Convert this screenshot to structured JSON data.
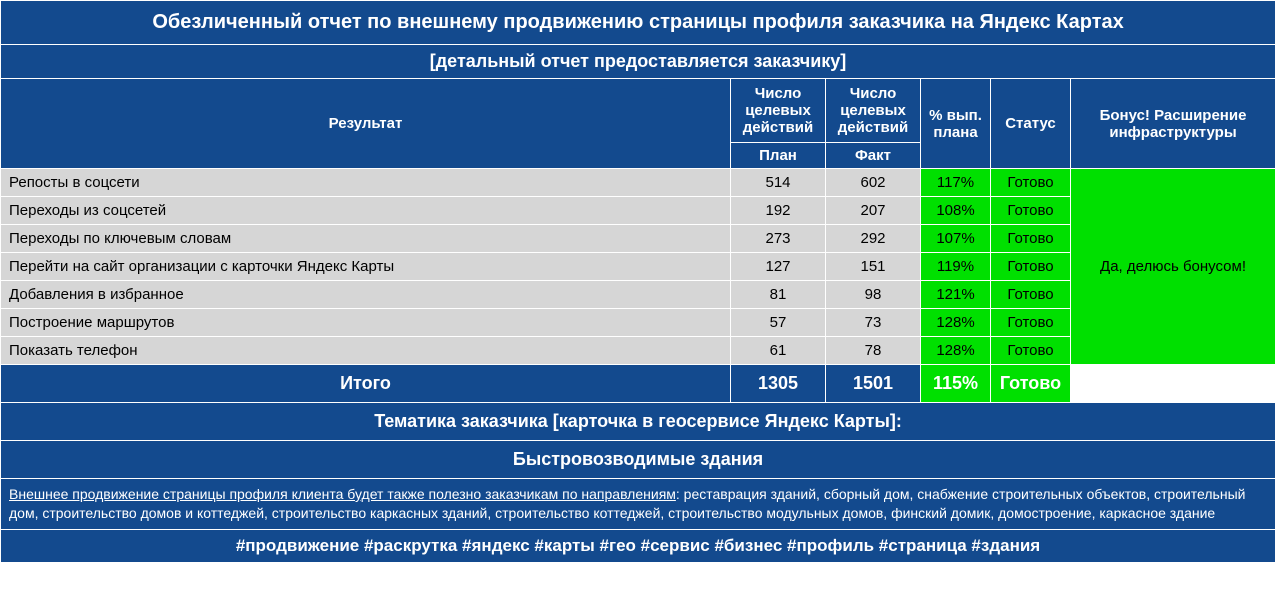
{
  "colors": {
    "header_bg": "#134a8e",
    "header_text": "#ffffff",
    "row_bg": "#d6d6d6",
    "row_text": "#000000",
    "green_bg": "#00e000",
    "border": "#ffffff"
  },
  "title": "Обезличенный отчет по внешнему продвижению страницы профиля заказчика на Яндекс Картах",
  "subtitle": "[детальный отчет предоставляется заказчику]",
  "columns": {
    "result": "Результат",
    "actions_plan_top": "Число целевых действий",
    "actions_fact_top": "Число целевых действий",
    "plan": "План",
    "fact": "Факт",
    "pct": "% вып. плана",
    "status": "Статус",
    "bonus": "Бонус! Расширение инфраструктуры"
  },
  "rows": [
    {
      "label": "Репосты в соцсети",
      "plan": "514",
      "fact": "602",
      "pct": "117%",
      "status": "Готово"
    },
    {
      "label": "Переходы из соцсетей",
      "plan": "192",
      "fact": "207",
      "pct": "108%",
      "status": "Готово"
    },
    {
      "label": "Переходы по ключевым словам",
      "plan": "273",
      "fact": "292",
      "pct": "107%",
      "status": "Готово"
    },
    {
      "label": "Перейти на сайт организации с карточки Яндекс Карты",
      "plan": "127",
      "fact": "151",
      "pct": "119%",
      "status": "Готово"
    },
    {
      "label": "Добавления в избранное",
      "plan": "81",
      "fact": "98",
      "pct": "121%",
      "status": "Готово"
    },
    {
      "label": "Построение маршрутов",
      "plan": "57",
      "fact": "73",
      "pct": "128%",
      "status": "Готово"
    },
    {
      "label": "Показать телефон",
      "plan": "61",
      "fact": "78",
      "pct": "128%",
      "status": "Готово"
    }
  ],
  "bonus_text": "Да, делюсь бонусом!",
  "total": {
    "label": "Итого",
    "plan": "1305",
    "fact": "1501",
    "pct": "115%",
    "status": "Готово"
  },
  "theme_header": "Тематика заказчика [карточка в геосервисе Яндекс Карты]:",
  "theme_value": "Быстровозводимые здания",
  "promo_lead": "Внешнее продвижение страницы профиля клиента будет также полезно заказчикам по направлениям",
  "promo_rest": ": реставрация зданий, сборный дом, снабжение строительных объектов, строительный дом, строительство домов и коттеджей, строительство каркасных зданий, строительство коттеджей, строительство модульных домов, финский домик, домостроение, каркасное здание",
  "hashtags": "#продвижение #раскрутка #яндекс #карты #гео #сервис #бизнес #профиль #страница #здания",
  "col_widths": {
    "result": 730,
    "plan": 95,
    "fact": 95,
    "pct": 70,
    "status": 80,
    "bonus": 205
  }
}
